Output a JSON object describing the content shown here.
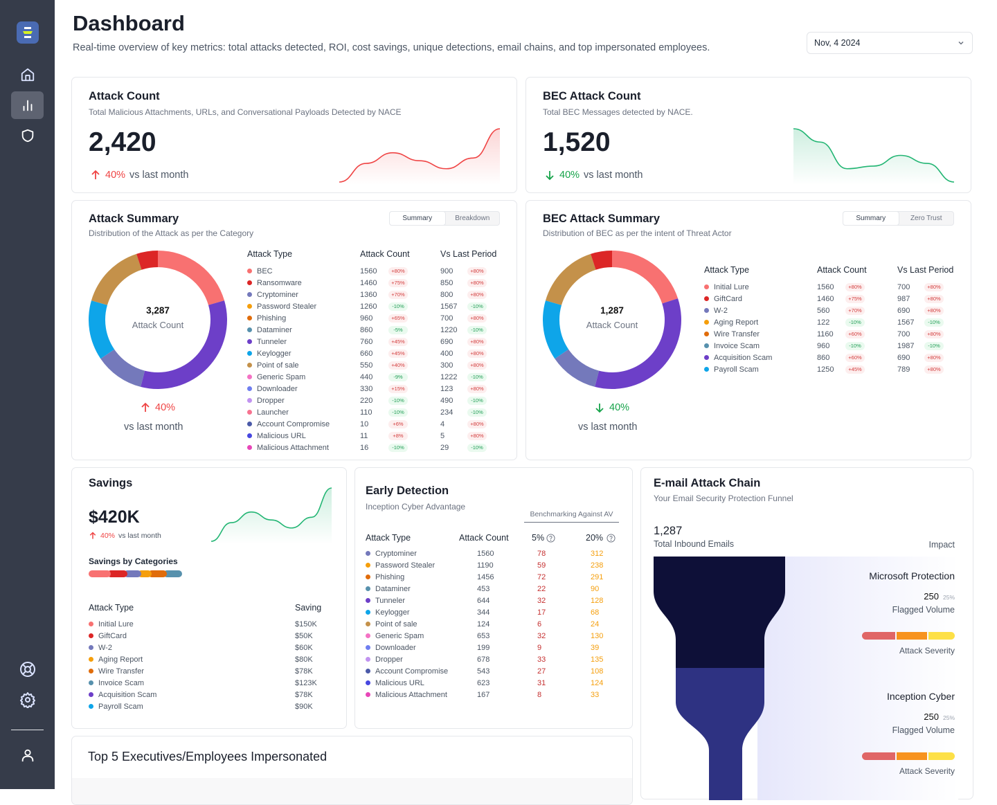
{
  "sidebar": {
    "logo": "logo-icon",
    "nav": [
      {
        "name": "home",
        "icon": "home-icon",
        "active": false
      },
      {
        "name": "analytics",
        "icon": "bar-chart-icon",
        "active": true
      },
      {
        "name": "security",
        "icon": "shield-icon",
        "active": false
      }
    ],
    "bottom": [
      {
        "name": "support",
        "icon": "lifebuoy-icon"
      },
      {
        "name": "settings",
        "icon": "gear-icon"
      },
      {
        "name": "profile",
        "icon": "user-icon"
      }
    ]
  },
  "header": {
    "title": "Dashboard",
    "subtitle": "Real-time overview of key metrics: total attacks detected, ROI, cost savings, unique detections, email chains, and top impersonated employees.",
    "date": "Nov, 4 2024"
  },
  "attack_count": {
    "title": "Attack Count",
    "subtitle": "Total Malicious Attachments, URLs, and Conversational Payloads Detected by NACE",
    "value": "2,420",
    "delta": "40%",
    "delta_label": "vs last month",
    "direction": "up",
    "trend": [
      0.0,
      0.35,
      0.55,
      0.4,
      0.25,
      0.45,
      1.0
    ]
  },
  "bec_count": {
    "title": "BEC Attack Count",
    "subtitle": "Total BEC Messages detected by NACE.",
    "value": "1,520",
    "delta": "40%",
    "delta_label": "vs last month",
    "direction": "down",
    "trend": [
      1.0,
      0.75,
      0.25,
      0.3,
      0.5,
      0.35,
      0.0
    ]
  },
  "attack_summary": {
    "title": "Attack Summary",
    "subtitle": "Distribution of the Attack as per the Category",
    "tabs": [
      "Summary",
      "Breakdown"
    ],
    "center_value": "3,287",
    "center_label": "Attack Count",
    "delta": "40%",
    "delta_label": "vs last month",
    "columns": [
      "Attack Type",
      "Attack Count",
      "Vs Last Period"
    ],
    "rows": [
      {
        "type": "BEC",
        "color": "#f87171",
        "count": "1560",
        "pct": "+80%",
        "prev": "900",
        "prev_pct": "+80%"
      },
      {
        "type": "Ransomware",
        "color": "#dc2626",
        "count": "1460",
        "pct": "+75%",
        "prev": "850",
        "prev_pct": "+80%"
      },
      {
        "type": "Cryptominer",
        "color": "#7479bb",
        "count": "1360",
        "pct": "+70%",
        "prev": "800",
        "prev_pct": "+80%"
      },
      {
        "type": "Password Stealer",
        "color": "#f59e0b",
        "count": "1260",
        "pct": "-10%",
        "prev": "1567",
        "prev_pct": "-10%"
      },
      {
        "type": "Phishing",
        "color": "#e06c0b",
        "count": "960",
        "pct": "+65%",
        "prev": "700",
        "prev_pct": "+80%"
      },
      {
        "type": "Dataminer",
        "color": "#5791ad",
        "count": "860",
        "pct": "-5%",
        "prev": "1220",
        "prev_pct": "-10%"
      },
      {
        "type": "Tunneler",
        "color": "#6d3fc8",
        "count": "760",
        "pct": "+45%",
        "prev": "690",
        "prev_pct": "+80%"
      },
      {
        "type": "Keylogger",
        "color": "#0ea5e9",
        "count": "660",
        "pct": "+45%",
        "prev": "400",
        "prev_pct": "+80%"
      },
      {
        "type": "Point of sale",
        "color": "#c4914a",
        "count": "550",
        "pct": "+40%",
        "prev": "300",
        "prev_pct": "+80%"
      },
      {
        "type": "Generic Spam",
        "color": "#f472c4",
        "count": "440",
        "pct": "-9%",
        "prev": "1222",
        "prev_pct": "-10%"
      },
      {
        "type": "Downloader",
        "color": "#6f7ef0",
        "count": "330",
        "pct": "+15%",
        "prev": "123",
        "prev_pct": "+80%"
      },
      {
        "type": "Dropper",
        "color": "#c193f0",
        "count": "220",
        "pct": "-10%",
        "prev": "490",
        "prev_pct": "-10%"
      },
      {
        "type": "Launcher",
        "color": "#f77390",
        "count": "110",
        "pct": "-10%",
        "prev": "234",
        "prev_pct": "-10%"
      },
      {
        "type": "Account Compromise",
        "color": "#4b5aa8",
        "count": "10",
        "pct": "+6%",
        "prev": "4",
        "prev_pct": "+80%"
      },
      {
        "type": "Malicious URL",
        "color": "#4747e0",
        "count": "11",
        "pct": "+8%",
        "prev": "5",
        "prev_pct": "+80%"
      },
      {
        "type": "Malicious Attachment",
        "color": "#e846b8",
        "count": "16",
        "pct": "-10%",
        "prev": "29",
        "prev_pct": "-10%"
      }
    ],
    "donut": [
      {
        "color": "#f87171",
        "share": 0.205
      },
      {
        "color": "#6d3fc8",
        "share": 0.335
      },
      {
        "color": "#7479bb",
        "share": 0.115
      },
      {
        "color": "#0ea5e9",
        "share": 0.14
      },
      {
        "color": "#c4914a",
        "share": 0.155
      },
      {
        "color": "#dc2626",
        "share": 0.05
      }
    ]
  },
  "bec_summary": {
    "title": "BEC Attack Summary",
    "subtitle": "Distribution of BEC as per the intent of Threat Actor",
    "tabs": [
      "Summary",
      "Zero Trust"
    ],
    "center_value": "1,287",
    "center_label": "Attack Count",
    "delta": "40%",
    "delta_label": "vs last month",
    "columns": [
      "Attack Type",
      "Attack Count",
      "Vs Last Period"
    ],
    "rows": [
      {
        "type": "Initial Lure",
        "color": "#f87171",
        "count": "1560",
        "pct": "+80%",
        "prev": "700",
        "prev_pct": "+80%"
      },
      {
        "type": "GiftCard",
        "color": "#dc2626",
        "count": "1460",
        "pct": "+75%",
        "prev": "987",
        "prev_pct": "+80%"
      },
      {
        "type": "W-2",
        "color": "#7479bb",
        "count": "560",
        "pct": "+70%",
        "prev": "690",
        "prev_pct": "+80%"
      },
      {
        "type": "Aging Report",
        "color": "#f59e0b",
        "count": "122",
        "pct": "-10%",
        "prev": "1567",
        "prev_pct": "-10%"
      },
      {
        "type": "Wire Transfer",
        "color": "#e06c0b",
        "count": "1160",
        "pct": "+60%",
        "prev": "700",
        "prev_pct": "+80%"
      },
      {
        "type": "Invoice Scam",
        "color": "#5791ad",
        "count": "960",
        "pct": "-10%",
        "prev": "1987",
        "prev_pct": "-10%"
      },
      {
        "type": "Acquisition Scam",
        "color": "#6d3fc8",
        "count": "860",
        "pct": "+60%",
        "prev": "690",
        "prev_pct": "+80%"
      },
      {
        "type": "Payroll Scam",
        "color": "#0ea5e9",
        "count": "1250",
        "pct": "+45%",
        "prev": "789",
        "prev_pct": "+80%"
      }
    ],
    "donut": [
      {
        "color": "#f87171",
        "share": 0.2
      },
      {
        "color": "#6d3fc8",
        "share": 0.34
      },
      {
        "color": "#7479bb",
        "share": 0.115
      },
      {
        "color": "#0ea5e9",
        "share": 0.14
      },
      {
        "color": "#c4914a",
        "share": 0.155
      },
      {
        "color": "#dc2626",
        "share": 0.05
      }
    ]
  },
  "savings": {
    "title": "Savings",
    "value": "$420K",
    "delta": "40%",
    "delta_label": "vs last month",
    "trend": [
      0.0,
      0.35,
      0.55,
      0.4,
      0.25,
      0.45,
      1.0
    ],
    "categories_title": "Savings by Categories",
    "columns": [
      "Attack Type",
      "Saving"
    ],
    "rows": [
      {
        "type": "Initial Lure",
        "color": "#f87171",
        "saving": "$150K"
      },
      {
        "type": "GiftCard",
        "color": "#dc2626",
        "saving": "$50K"
      },
      {
        "type": "W-2",
        "color": "#7479bb",
        "saving": "$60K"
      },
      {
        "type": "Aging Report",
        "color": "#f59e0b",
        "saving": "$80K"
      },
      {
        "type": "Wire Transfer",
        "color": "#e06c0b",
        "saving": "$78K"
      },
      {
        "type": "Invoice Scam",
        "color": "#5791ad",
        "saving": "$123K"
      },
      {
        "type": "Acquisition Scam",
        "color": "#6d3fc8",
        "saving": "$78K"
      },
      {
        "type": "Payroll Scam",
        "color": "#0ea5e9",
        "saving": "$90K"
      }
    ],
    "bar": [
      {
        "color": "#f87171",
        "share": 0.2
      },
      {
        "color": "#dc2626",
        "share": 0.18
      },
      {
        "color": "#7479bb",
        "share": 0.16
      },
      {
        "color": "#f59e0b",
        "share": 0.12
      },
      {
        "color": "#e06c0b",
        "share": 0.17
      },
      {
        "color": "#5791ad",
        "share": 0.17
      }
    ]
  },
  "early_detection": {
    "title": "Early Detection",
    "subtitle": "Inception Cyber Advantage",
    "benchmark_label": "Benchmarking Against AV",
    "columns": [
      "Attack Type",
      "Attack Count",
      "5%",
      "20%"
    ],
    "help_icon": "question-circle-icon",
    "rows": [
      {
        "type": "Cryptominer",
        "color": "#7479bb",
        "count": "1560",
        "p5": "78",
        "p20": "312"
      },
      {
        "type": "Password Stealer",
        "color": "#f59e0b",
        "count": "1190",
        "p5": "59",
        "p20": "238"
      },
      {
        "type": "Phishing",
        "color": "#e06c0b",
        "count": "1456",
        "p5": "72",
        "p20": "291"
      },
      {
        "type": "Dataminer",
        "color": "#5791ad",
        "count": "453",
        "p5": "22",
        "p20": "90"
      },
      {
        "type": "Tunneler",
        "color": "#6d3fc8",
        "count": "644",
        "p5": "32",
        "p20": "128"
      },
      {
        "type": "Keylogger",
        "color": "#0ea5e9",
        "count": "344",
        "p5": "17",
        "p20": "68"
      },
      {
        "type": "Point of sale",
        "color": "#c4914a",
        "count": "124",
        "p5": "6",
        "p20": "24"
      },
      {
        "type": "Generic Spam",
        "color": "#f472c4",
        "count": "653",
        "p5": "32",
        "p20": "130"
      },
      {
        "type": "Downloader",
        "color": "#6f7ef0",
        "count": "199",
        "p5": "9",
        "p20": "39"
      },
      {
        "type": "Dropper",
        "color": "#c193f0",
        "count": "678",
        "p5": "33",
        "p20": "135"
      },
      {
        "type": "Account Compromise",
        "color": "#4b5aa8",
        "count": "543",
        "p5": "27",
        "p20": "108"
      },
      {
        "type": "Malicious URL",
        "color": "#4747e0",
        "count": "623",
        "p5": "31",
        "p20": "124"
      },
      {
        "type": "Malicious Attachment",
        "color": "#e846b8",
        "count": "167",
        "p5": "8",
        "p20": "33"
      }
    ]
  },
  "email_chain": {
    "title": "E-mail Attack Chain",
    "subtitle": "Your Email Security Protection Funnel",
    "total": "1,287",
    "total_label": "Total Inbound Emails",
    "impact_label": "Impact",
    "stages": [
      {
        "name": "Microsoft Protection",
        "value": "250",
        "pct": "25%",
        "value_label": "Flagged Volume",
        "severity_label": "Attack Severity",
        "color": "#0e1038"
      },
      {
        "name": "Inception Cyber",
        "value": "250",
        "pct": "25%",
        "value_label": "Flagged Volume",
        "severity_label": "Attack Severity",
        "color": "#2e3282"
      }
    ],
    "severity_colors": [
      "#e06666",
      "#f7931e",
      "#fde047"
    ]
  },
  "impersonated": {
    "title": "Top 5 Executives/Employees Impersonated"
  }
}
